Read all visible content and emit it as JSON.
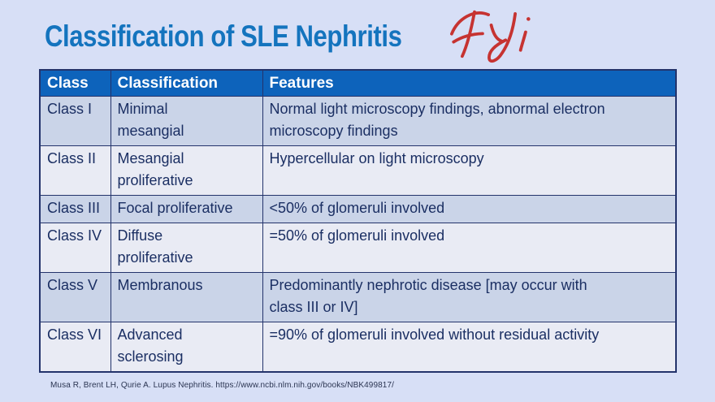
{
  "slide": {
    "title": "Classification of SLE Nephritis",
    "annotation": "FYi",
    "citation": "Musa R, Brent LH, Qurie A. Lupus Nephritis. https://www.ncbi.nlm.nih.gov/books/NBK499817/"
  },
  "table": {
    "headers": [
      "Class",
      "Classification",
      "Features"
    ],
    "rows": [
      {
        "class": "Class I",
        "classification": "Minimal\nmesangial",
        "features": "Normal light microscopy findings, abnormal electron\nmicroscopy findings"
      },
      {
        "class": "Class II",
        "classification": "Mesangial\nproliferative",
        "features": "Hypercellular on light microscopy"
      },
      {
        "class": "Class III",
        "classification": "Focal proliferative",
        "features": "<50% of glomeruli involved"
      },
      {
        "class": "Class IV",
        "classification": "Diffuse\nproliferative",
        "features": "=50% of glomeruli involved"
      },
      {
        "class": "Class V",
        "classification": "Membranous",
        "features": "Predominantly nephrotic disease [may occur with\nclass III or IV]"
      },
      {
        "class": "Class VI",
        "classification": "Advanced\nsclerosing",
        "features": "=90% of glomeruli involved without residual activity"
      }
    ]
  },
  "colors": {
    "background": "#d7dff6",
    "title_blue": "#1474be",
    "annotation_red": "#c63331",
    "header_bg": "#0d63bb",
    "header_text": "#ffffff",
    "row_odd_bg": "#cad4e8",
    "row_even_bg": "#e9ebf4",
    "cell_text": "#1b2f63",
    "border": "#23336b",
    "citation_text": "#2b3552"
  }
}
